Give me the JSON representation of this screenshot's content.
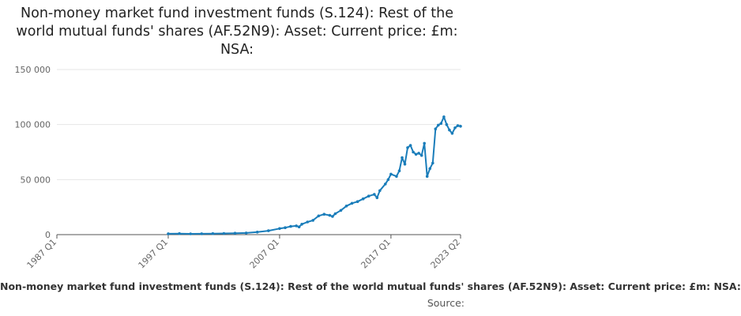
{
  "colors": {
    "line": "#1a7dba",
    "axis": "#555555",
    "grid": "#e6e6e6",
    "text": "#666666"
  },
  "chart_data": {
    "type": "line",
    "title": "Non-money market fund investment funds (S.124): Rest of the world mutual funds' shares (AF.52N9): Asset: Current price: £m: NSA:",
    "xlabel": "",
    "ylabel": "",
    "x_range": [
      1987.0,
      2023.25
    ],
    "ylim": [
      0,
      150000
    ],
    "y_ticks": [
      0,
      50000,
      100000,
      150000
    ],
    "y_tick_labels": [
      "0",
      "50 000",
      "100 000",
      "150 000"
    ],
    "x_ticks": [
      1987.0,
      1997.0,
      2007.0,
      2017.0,
      2023.25
    ],
    "x_tick_labels": [
      "1987 Q1",
      "1997 Q1",
      "2007 Q1",
      "2017 Q1",
      "2023 Q2"
    ],
    "grid": true,
    "series": [
      {
        "name": "Non-money market fund investment funds (S.124): Rest of the world mutual funds' shares (AF.52N9): Asset: Current price: £m: NSA:",
        "x": [
          1997.0,
          1998.0,
          1999.0,
          2000.0,
          2001.0,
          2002.0,
          2003.0,
          2004.0,
          2005.0,
          2006.0,
          2007.0,
          2007.5,
          2008.0,
          2008.5,
          2008.75,
          2009.0,
          2009.5,
          2010.0,
          2010.5,
          2011.0,
          2011.5,
          2011.75,
          2012.0,
          2012.5,
          2013.0,
          2013.5,
          2014.0,
          2014.5,
          2015.0,
          2015.5,
          2015.75,
          2016.0,
          2016.5,
          2016.75,
          2017.0,
          2017.5,
          2017.75,
          2018.0,
          2018.25,
          2018.5,
          2018.75,
          2019.0,
          2019.25,
          2019.5,
          2019.75,
          2020.0,
          2020.25,
          2020.5,
          2020.75,
          2021.0,
          2021.25,
          2021.5,
          2021.75,
          2022.0,
          2022.25,
          2022.5,
          2022.75,
          2023.0,
          2023.25
        ],
        "values": [
          800,
          900,
          700,
          800,
          900,
          1100,
          1300,
          1500,
          2300,
          3500,
          5500,
          6300,
          7500,
          8000,
          7000,
          9500,
          11500,
          13000,
          17000,
          18500,
          17500,
          16500,
          19000,
          22000,
          26000,
          28500,
          30000,
          32500,
          35000,
          36500,
          33500,
          40000,
          46000,
          50000,
          55000,
          53000,
          58000,
          70000,
          64000,
          79000,
          81000,
          75000,
          73000,
          74000,
          72000,
          83000,
          53000,
          60000,
          65000,
          96000,
          99500,
          101000,
          107000,
          100000,
          95000,
          92000,
          97000,
          99000,
          98500
        ]
      }
    ]
  },
  "footer": {
    "series_label": "Non-money market fund investment funds (S.124): Rest of the world mutual funds' shares (AF.52N9): Asset: Current price: £m: NSA:",
    "source_label": "Source:"
  }
}
